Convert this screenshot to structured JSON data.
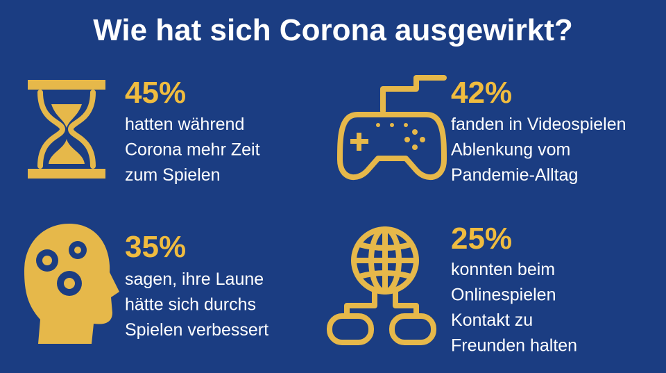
{
  "header": {
    "title": "Wie hat sich Corona ausgewirkt?"
  },
  "stats": [
    {
      "value": "45%",
      "lines": [
        "hatten während",
        "Corona mehr Zeit",
        "zum Spielen"
      ]
    },
    {
      "value": "42%",
      "lines": [
        "fanden in Videospielen",
        "Ablenkung vom",
        "Pandemie-Alltag"
      ]
    },
    {
      "value": "35%",
      "lines": [
        "sagen, ihre Laune",
        "hätte sich durchs",
        "Spielen verbessert"
      ]
    },
    {
      "value": "25%",
      "lines": [
        "konnten beim",
        "Onlinespielen",
        "Kontakt zu",
        "Freunden halten"
      ]
    }
  ]
}
